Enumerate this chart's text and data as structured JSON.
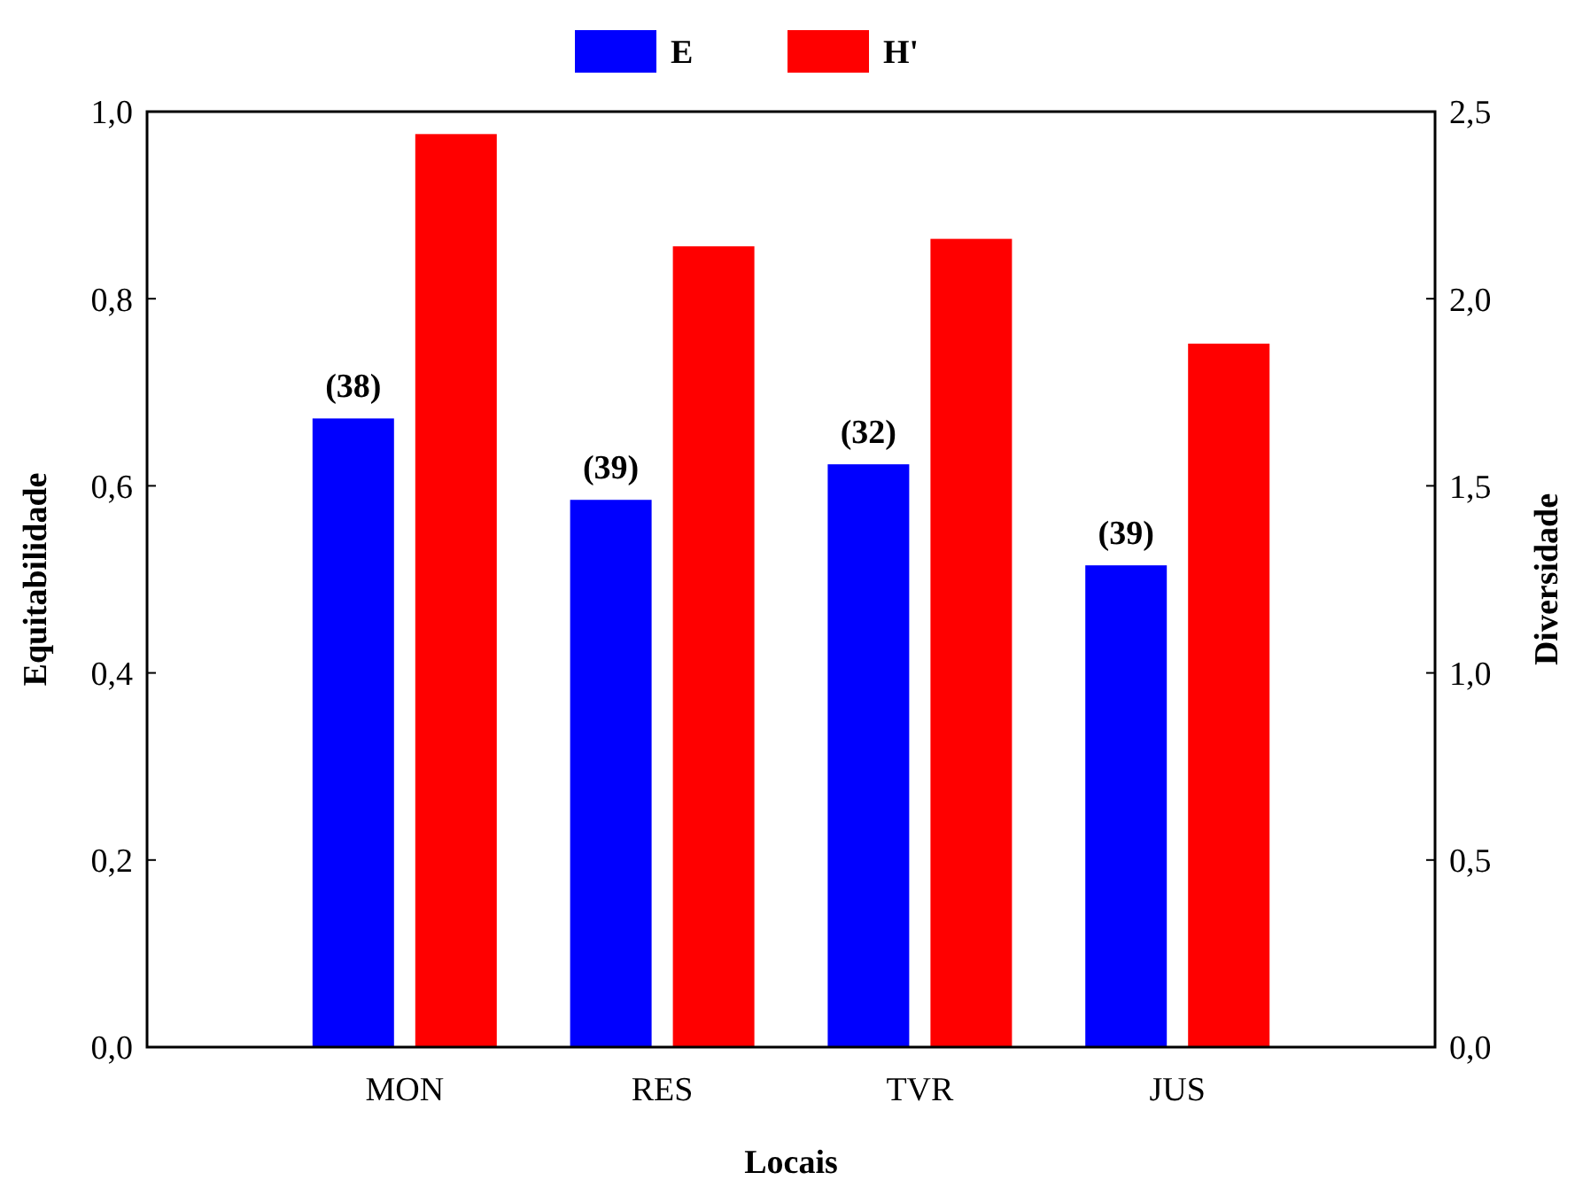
{
  "chart_data": {
    "type": "bar",
    "xlabel": "Locais",
    "ylabel": "Equitabilidade",
    "y2label": "Diversidade",
    "categories": [
      "MON",
      "RES",
      "TVR",
      "JUS"
    ],
    "series": [
      {
        "name": "E",
        "color": "#0000ff",
        "values": [
          0.672,
          0.585,
          0.623,
          0.515
        ]
      },
      {
        "name": "H'",
        "color": "#ff0000",
        "axis": "y2",
        "values": [
          2.44,
          2.14,
          2.16,
          1.88
        ]
      }
    ],
    "ylim": [
      0,
      1
    ],
    "yticks": [
      {
        "value": 0,
        "label": "0,0"
      },
      {
        "value": 0.2,
        "label": "0,2"
      },
      {
        "value": 0.4,
        "label": "0,4"
      },
      {
        "value": 0.6,
        "label": "0,6"
      },
      {
        "value": 0.8,
        "label": "0,8"
      },
      {
        "value": 1,
        "label": "1,0"
      }
    ],
    "y2lim": [
      0,
      2.5
    ],
    "y2ticks": [
      {
        "value": 0,
        "label": "0,0"
      },
      {
        "value": 0.5,
        "label": "0,5"
      },
      {
        "value": 1,
        "label": "1,0"
      },
      {
        "value": 1.5,
        "label": "1,5"
      },
      {
        "value": 2,
        "label": "2,0"
      },
      {
        "value": 2.5,
        "label": "2,5"
      }
    ],
    "annotations": [
      "(38)",
      "(39)",
      "(32)",
      "(39)"
    ],
    "legend": "top",
    "grid": false
  }
}
